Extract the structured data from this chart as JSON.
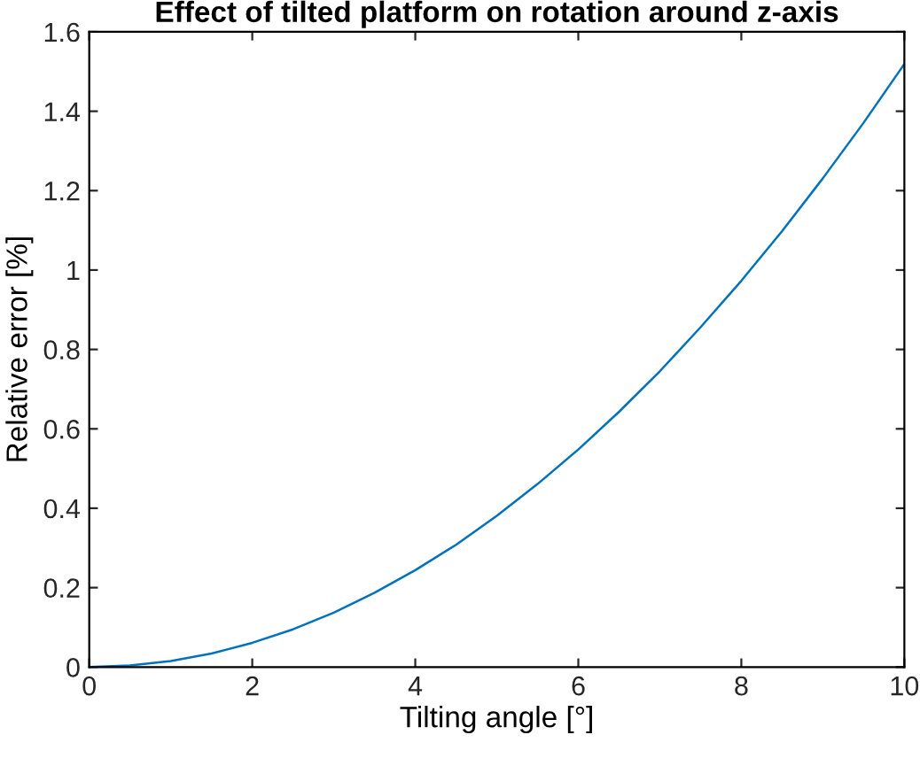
{
  "chart_data": {
    "type": "line",
    "title": "Effect of tilted platform on rotation around z-axis",
    "xlabel": "Tilting angle [°]",
    "ylabel": "Relative error [%]",
    "x": [
      0,
      0.5,
      1,
      1.5,
      2,
      2.5,
      3,
      3.5,
      4,
      4.5,
      5,
      5.5,
      6,
      6.5,
      7,
      7.5,
      8,
      8.5,
      9,
      9.5,
      10
    ],
    "series": [
      {
        "color": "#0072bd",
        "values": [
          0,
          0.004,
          0.015,
          0.034,
          0.061,
          0.095,
          0.137,
          0.187,
          0.244,
          0.308,
          0.381,
          0.461,
          0.548,
          0.643,
          0.745,
          0.856,
          0.973,
          1.098,
          1.231,
          1.371,
          1.519
        ]
      }
    ],
    "xlim": [
      0,
      10
    ],
    "xticks": [
      0,
      2,
      4,
      6,
      8,
      10
    ],
    "ylim": [
      0,
      1.6
    ],
    "yticks": [
      0,
      0.2,
      0.4,
      0.6,
      0.8,
      1,
      1.2,
      1.4,
      1.6
    ],
    "grid": false,
    "legend": false
  }
}
